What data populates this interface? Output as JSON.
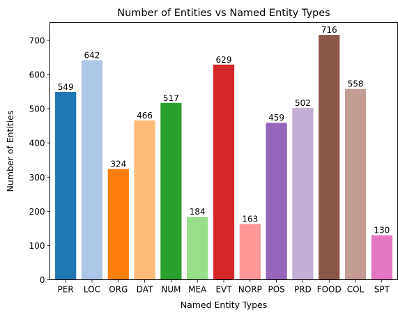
{
  "chart_data": {
    "type": "bar",
    "title": "Number of Entities vs Named Entity Types",
    "xlabel": "Named Entity Types",
    "ylabel": "Number of Entities",
    "categories": [
      "PER",
      "LOC",
      "ORG",
      "DAT",
      "NUM",
      "MEA",
      "EVT",
      "NORP",
      "POS",
      "PRD",
      "FOOD",
      "COL",
      "SPT"
    ],
    "values": [
      549,
      642,
      324,
      466,
      517,
      184,
      629,
      163,
      459,
      502,
      716,
      558,
      130
    ],
    "colors": [
      "#1f77b4",
      "#aec7e8",
      "#ff7f0e",
      "#ffbb78",
      "#2ca02c",
      "#98df8a",
      "#d62728",
      "#ff9896",
      "#9467bd",
      "#c5b0d5",
      "#8c564b",
      "#c49c94",
      "#e377c2"
    ],
    "yticks": [
      0,
      100,
      200,
      300,
      400,
      500,
      600,
      700
    ],
    "ylim": [
      0,
      751.8
    ],
    "grid": false,
    "data_labels": true
  }
}
